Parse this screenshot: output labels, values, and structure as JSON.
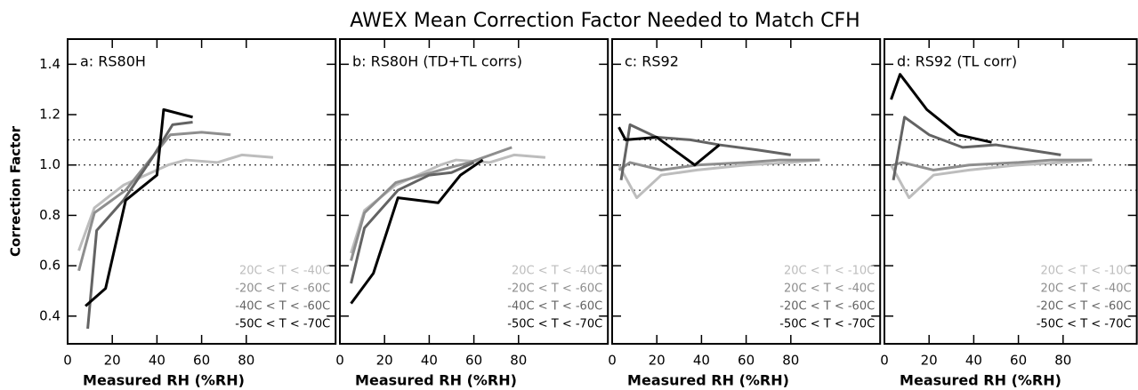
{
  "title": "AWEX Mean Correction Factor Needed to Match CFH",
  "chart_data": [
    {
      "type": "line",
      "title": "a:  RS80H",
      "xlabel": "Measured RH (%RH)",
      "ylabel": "Correction Factor",
      "xlim": [
        0,
        120
      ],
      "xticks": [
        0,
        20,
        40,
        60,
        80
      ],
      "ylim": [
        0.29,
        1.5
      ],
      "yticks": [
        0.4,
        0.6,
        0.8,
        {
          "value": 1,
          "label": "1.0"
        },
        1.2,
        1.4
      ],
      "ytick_labels": true,
      "reference_lines": [
        0.9,
        1,
        1.1
      ],
      "legend": "lower right",
      "series": [
        {
          "name": "20C < T < -40C",
          "color": "#bdbdbd",
          "x": [
            5,
            12,
            25,
            45,
            53,
            67,
            78,
            92
          ],
          "values": [
            0.66,
            0.83,
            0.92,
            1.0,
            1.02,
            1.01,
            1.04,
            1.03
          ]
        },
        {
          "name": "-20C < T < -60C",
          "color": "#8e8e8e",
          "x": [
            5,
            12,
            26,
            35,
            46,
            60,
            73
          ],
          "values": [
            0.58,
            0.81,
            0.9,
            1.0,
            1.12,
            1.13,
            1.12
          ]
        },
        {
          "name": "-40C < T < -60C",
          "color": "#636363",
          "x": [
            9,
            13,
            25,
            38,
            47,
            56
          ],
          "values": [
            0.35,
            0.74,
            0.86,
            1.03,
            1.16,
            1.17
          ]
        },
        {
          "name": "-50C < T < -70C",
          "color": "#000000",
          "x": [
            8,
            17,
            26,
            40,
            43,
            56
          ],
          "values": [
            0.44,
            0.51,
            0.86,
            0.96,
            1.22,
            1.19
          ]
        }
      ]
    },
    {
      "type": "line",
      "title": "b:  RS80H (TD+TL corrs)",
      "xlabel": "Measured RH (%RH)",
      "xlim": [
        0,
        120
      ],
      "xticks": [
        0,
        20,
        40,
        60,
        80
      ],
      "ylim": [
        0.29,
        1.5
      ],
      "yticks": [
        0.4,
        0.6,
        0.8,
        1,
        1.2,
        1.4
      ],
      "ytick_labels": false,
      "reference_lines": [
        0.9,
        1,
        1.1
      ],
      "legend": "lower right",
      "series": [
        {
          "name": "20C < T < -40C",
          "color": "#bdbdbd",
          "x": [
            5,
            11,
            25,
            45,
            52,
            67,
            78,
            92
          ],
          "values": [
            0.65,
            0.82,
            0.92,
            1.0,
            1.02,
            1.01,
            1.04,
            1.03
          ]
        },
        {
          "name": "-20C < T < -60C",
          "color": "#8e8e8e",
          "x": [
            5,
            11,
            25,
            45,
            58,
            77
          ],
          "values": [
            0.62,
            0.81,
            0.93,
            0.98,
            1.01,
            1.07
          ]
        },
        {
          "name": "-40C < T < -60C",
          "color": "#636363",
          "x": [
            5,
            11,
            26,
            40,
            50,
            60
          ],
          "values": [
            0.53,
            0.75,
            0.9,
            0.96,
            0.97,
            1.01
          ]
        },
        {
          "name": "-50C < T < -70C",
          "color": "#000000",
          "x": [
            5,
            15,
            26,
            44,
            54,
            64
          ],
          "values": [
            0.45,
            0.57,
            0.87,
            0.85,
            0.96,
            1.02
          ]
        }
      ]
    },
    {
      "type": "line",
      "title": "c:  RS92",
      "xlabel": "Measured RH (%RH)",
      "xlim": [
        0,
        120
      ],
      "xticks": [
        0,
        20,
        40,
        60,
        80
      ],
      "ylim": [
        0.29,
        1.5
      ],
      "yticks": [
        0.4,
        0.6,
        0.8,
        1,
        1.2,
        1.4
      ],
      "ytick_labels": false,
      "reference_lines": [
        0.9,
        1,
        1.1
      ],
      "legend": "lower right",
      "series": [
        {
          "name": "20C < T < -10C",
          "color": "#bdbdbd",
          "x": [
            3,
            11,
            22,
            38,
            60,
            80,
            93
          ],
          "values": [
            1.0,
            0.87,
            0.96,
            0.98,
            1.0,
            1.01,
            1.02
          ]
        },
        {
          "name": "20C < T < -40C",
          "color": "#8e8e8e",
          "x": [
            3,
            8,
            22,
            38,
            60,
            75,
            93
          ],
          "values": [
            0.98,
            1.01,
            0.98,
            1.0,
            1.01,
            1.02,
            1.02
          ]
        },
        {
          "name": "-20C < T < -60C",
          "color": "#636363",
          "x": [
            4,
            8,
            20,
            35,
            48,
            65,
            80
          ],
          "values": [
            0.94,
            1.16,
            1.11,
            1.1,
            1.08,
            1.06,
            1.04
          ]
        },
        {
          "name": "-50C < T < -70C",
          "color": "#000000",
          "x": [
            3,
            6,
            20,
            37,
            48
          ],
          "values": [
            1.15,
            1.1,
            1.11,
            1.0,
            1.08
          ]
        }
      ]
    },
    {
      "type": "line",
      "title": "d:  RS92 (TL corr)",
      "xlabel": "Measured RH (%RH)",
      "xlim": [
        0,
        113
      ],
      "xticks": [
        0,
        20,
        40,
        60,
        80
      ],
      "ylim": [
        0.29,
        1.5
      ],
      "yticks": [
        0.4,
        0.6,
        0.8,
        1,
        1.2,
        1.4
      ],
      "ytick_labels": false,
      "reference_lines": [
        0.9,
        1,
        1.1
      ],
      "legend": "lower right",
      "series": [
        {
          "name": "20C < T < -10C",
          "color": "#bdbdbd",
          "x": [
            3,
            11,
            22,
            38,
            60,
            80,
            93
          ],
          "values": [
            1.0,
            0.87,
            0.96,
            0.98,
            1.0,
            1.01,
            1.02
          ]
        },
        {
          "name": "20C < T < -40C",
          "color": "#8e8e8e",
          "x": [
            4,
            8,
            22,
            38,
            60,
            75,
            93
          ],
          "values": [
            1.0,
            1.01,
            0.98,
            1.0,
            1.01,
            1.02,
            1.02
          ]
        },
        {
          "name": "-20C < T < -60C",
          "color": "#636363",
          "x": [
            4,
            9,
            20,
            35,
            50,
            79
          ],
          "values": [
            0.94,
            1.19,
            1.12,
            1.07,
            1.08,
            1.04
          ]
        },
        {
          "name": "-50C < T < -70C",
          "color": "#000000",
          "x": [
            3,
            7,
            19,
            33,
            48
          ],
          "values": [
            1.26,
            1.36,
            1.22,
            1.12,
            1.09
          ]
        }
      ]
    }
  ]
}
